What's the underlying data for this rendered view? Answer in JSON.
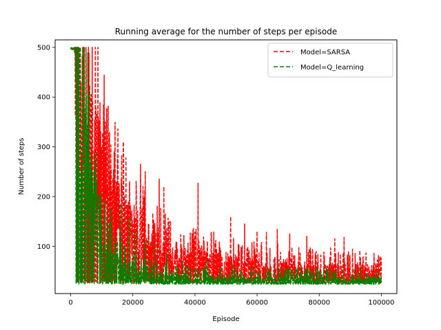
{
  "chart_data": {
    "type": "line",
    "title": "Running average for the number of steps per episode",
    "xlabel": "Episode",
    "ylabel": "Number of steps",
    "xlim": [
      -5000,
      105000
    ],
    "ylim": [
      5,
      515
    ],
    "x_ticks": [
      0,
      20000,
      40000,
      60000,
      80000,
      100000
    ],
    "x_tick_labels": [
      "0",
      "20000",
      "40000",
      "60000",
      "80000",
      "100000"
    ],
    "y_ticks": [
      100,
      200,
      300,
      400,
      500
    ],
    "y_tick_labels": [
      "100",
      "200",
      "300",
      "400",
      "500"
    ],
    "grid": false,
    "legend_position": "top-right",
    "series": [
      {
        "name": "Model=SARSA",
        "color": "#ff0000",
        "style": "dashed",
        "baseline": [
          [
            0,
            500
          ],
          [
            2000,
            495
          ],
          [
            4000,
            420
          ],
          [
            6000,
            330
          ],
          [
            8000,
            270
          ],
          [
            10000,
            225
          ],
          [
            12000,
            190
          ],
          [
            14000,
            165
          ],
          [
            16000,
            148
          ],
          [
            18000,
            130
          ],
          [
            20000,
            115
          ],
          [
            25000,
            95
          ],
          [
            30000,
            82
          ],
          [
            35000,
            72
          ],
          [
            40000,
            65
          ],
          [
            50000,
            55
          ],
          [
            60000,
            50
          ],
          [
            70000,
            47
          ],
          [
            80000,
            45
          ],
          [
            90000,
            43
          ],
          [
            100000,
            42
          ]
        ],
        "spikes": [
          [
            3000,
            480
          ],
          [
            5000,
            440
          ],
          [
            6500,
            400
          ],
          [
            8000,
            380
          ],
          [
            9500,
            320
          ],
          [
            11000,
            350
          ],
          [
            12500,
            330
          ],
          [
            14000,
            290
          ],
          [
            17000,
            310
          ],
          [
            19000,
            230
          ],
          [
            22500,
            265
          ],
          [
            24000,
            250
          ],
          [
            28500,
            235
          ],
          [
            30000,
            220
          ],
          [
            41000,
            228
          ],
          [
            51500,
            160
          ],
          [
            56000,
            145
          ],
          [
            60000,
            130
          ],
          [
            63000,
            128
          ],
          [
            66500,
            135
          ],
          [
            70500,
            125
          ],
          [
            76000,
            120
          ],
          [
            85000,
            115
          ],
          [
            88000,
            118
          ],
          [
            99500,
            72
          ]
        ],
        "min": 26
      },
      {
        "name": "Model=Q_learning",
        "color": "#008000",
        "style": "dashed",
        "baseline": [
          [
            0,
            500
          ],
          [
            1500,
            470
          ],
          [
            2500,
            390
          ],
          [
            3500,
            330
          ],
          [
            4500,
            270
          ],
          [
            5500,
            225
          ],
          [
            7000,
            170
          ],
          [
            8500,
            125
          ],
          [
            10000,
            90
          ],
          [
            12000,
            70
          ],
          [
            15000,
            55
          ],
          [
            20000,
            42
          ],
          [
            25000,
            35
          ],
          [
            30000,
            30
          ],
          [
            40000,
            27
          ],
          [
            60000,
            26
          ],
          [
            100000,
            26
          ]
        ],
        "spikes": [
          [
            1200,
            490
          ],
          [
            2800,
            400
          ],
          [
            4000,
            360
          ],
          [
            5200,
            310
          ],
          [
            6500,
            280
          ],
          [
            7500,
            250
          ],
          [
            9000,
            200
          ],
          [
            11000,
            190
          ],
          [
            13000,
            175
          ],
          [
            16000,
            185
          ],
          [
            19000,
            155
          ],
          [
            21000,
            130
          ],
          [
            24000,
            110
          ],
          [
            27000,
            105
          ],
          [
            31000,
            85
          ],
          [
            36000,
            70
          ],
          [
            44000,
            72
          ],
          [
            52000,
            65
          ],
          [
            59000,
            60
          ]
        ],
        "min": 24
      }
    ]
  }
}
